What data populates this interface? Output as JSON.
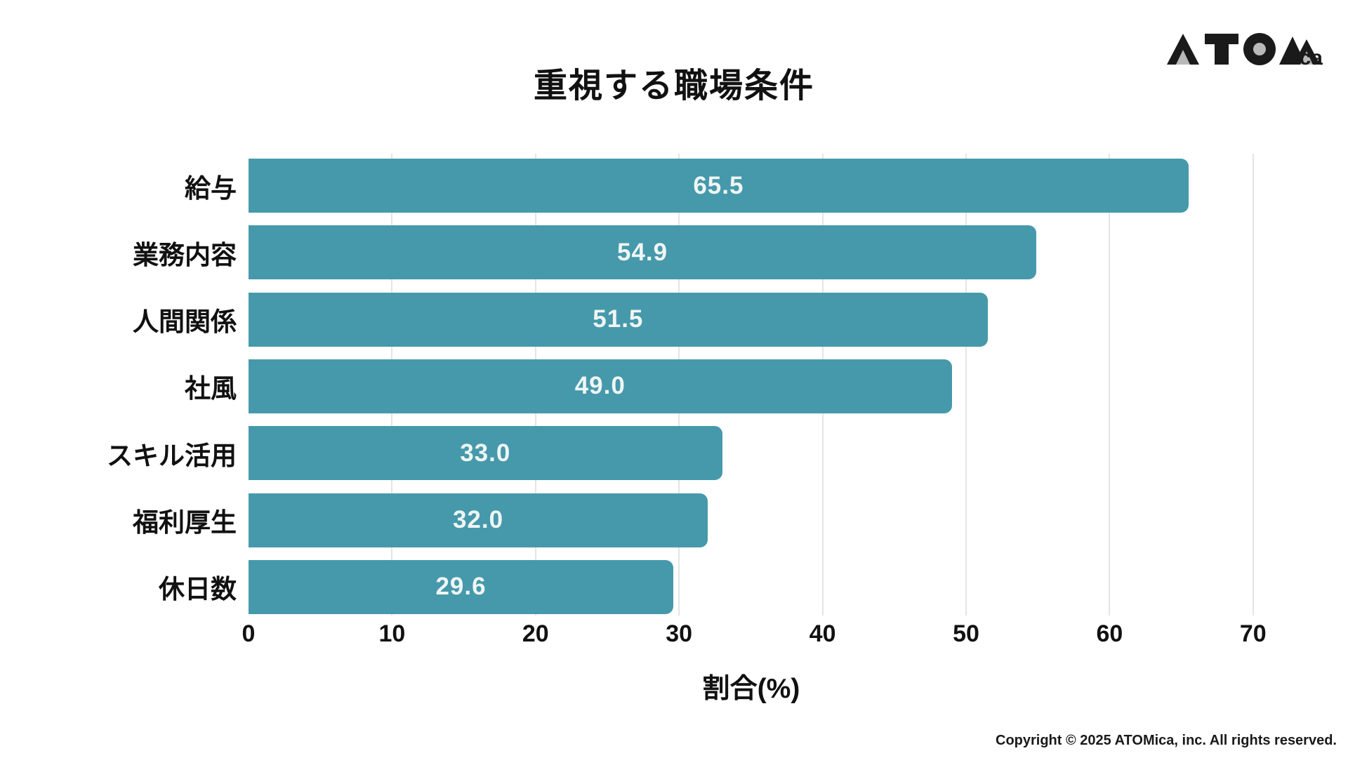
{
  "header": {
    "logo_text": "ATOMica",
    "logo_suffix": "ica"
  },
  "chart_data": {
    "type": "bar",
    "orientation": "horizontal",
    "title": "重視する職場条件",
    "xlabel": "割合(%)",
    "categories": [
      "給与",
      "業務内容",
      "人間関係",
      "社風",
      "スキル活用",
      "福利厚生",
      "休日数"
    ],
    "values": [
      65.5,
      54.9,
      51.5,
      49.0,
      33.0,
      32.0,
      29.6
    ],
    "value_labels": [
      "65.5",
      "54.9",
      "51.5",
      "49.0",
      "33.0",
      "32.0",
      "29.6"
    ],
    "xlim": [
      0,
      70
    ],
    "xticks": [
      0,
      10,
      20,
      30,
      40,
      50,
      60,
      70
    ],
    "grid": true,
    "legend": "none",
    "bar_color": "#4599ab",
    "value_label_color": "#eff5f4",
    "grid_color": "#e4e4e4"
  },
  "footer": {
    "copyright": "Copyright © 2025 ATOMica, inc. All rights reserved."
  }
}
